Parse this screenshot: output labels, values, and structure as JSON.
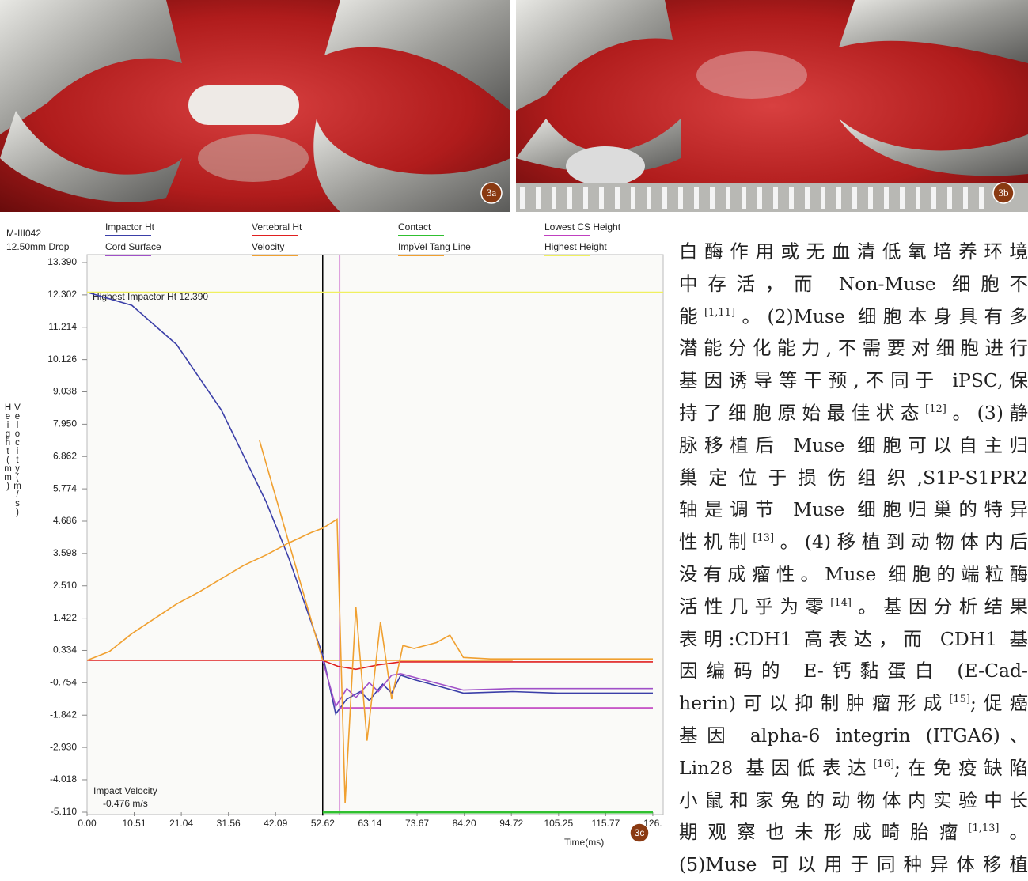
{
  "photos": [
    {
      "label": "3a"
    },
    {
      "label": "3b"
    }
  ],
  "chart_data": {
    "type": "line",
    "figure_label": "3c",
    "header": [
      "M-III042",
      "12.50mm Drop"
    ],
    "x_label": "Time(ms)",
    "y_label": [
      "Height(mm)",
      "Velocity(m/s)"
    ],
    "annotations": [
      "Highest Impactor Ht 12.390",
      "Impact Velocity",
      "-0.476 m/s"
    ],
    "xlim": [
      0,
      128.6
    ],
    "ylim": [
      -5.11,
      13.39
    ],
    "grid": false,
    "xticks": [
      {
        "value": 0,
        "label": "0.00"
      },
      {
        "value": 10.51,
        "label": "10.51"
      },
      {
        "value": 21.04,
        "label": "21.04"
      },
      {
        "value": 31.56,
        "label": "31.56"
      },
      {
        "value": 42.09,
        "label": "42.09"
      },
      {
        "value": 52.62,
        "label": "52.62"
      },
      {
        "value": 63.14,
        "label": "63.14"
      },
      {
        "value": 73.67,
        "label": "73.67"
      },
      {
        "value": 84.2,
        "label": "84.20"
      },
      {
        "value": 94.72,
        "label": "94.72"
      },
      {
        "value": 105.25,
        "label": "105.25"
      },
      {
        "value": 115.77,
        "label": "115.77"
      },
      {
        "value": 126.29,
        "label": "126."
      }
    ],
    "yticks": [
      {
        "value": 13.39,
        "label": "13.390"
      },
      {
        "value": 12.302,
        "label": "12.302"
      },
      {
        "value": 11.214,
        "label": "11.214"
      },
      {
        "value": 10.126,
        "label": "10.126"
      },
      {
        "value": 9.038,
        "label": "9.038"
      },
      {
        "value": 7.95,
        "label": "7.950"
      },
      6.862,
      5.774,
      4.686,
      3.598,
      {
        "value": 2.51,
        "label": "2.510"
      },
      1.422,
      0.334,
      -0.754,
      -1.842,
      {
        "value": -2.93,
        "label": "-2.930"
      },
      -4.018,
      {
        "value": -5.11,
        "label": "-5.110"
      }
    ],
    "markers": [
      {
        "x": 52.6,
        "color": "#000000"
      },
      {
        "x": 56.4,
        "color": "#c040c0"
      }
    ],
    "series": [
      {
        "name": "Impactor Ht",
        "color": "#3b3fa8",
        "x": [
          0,
          10,
          20,
          30,
          40,
          45,
          52.6,
          55.5,
          58,
          61,
          63,
          66,
          68,
          70,
          73,
          78,
          84,
          95,
          105,
          126.3
        ],
        "values": [
          12.39,
          11.95,
          10.63,
          8.42,
          5.33,
          3.46,
          0.18,
          -1.8,
          -1.3,
          -1.05,
          -1.35,
          -0.8,
          -1.1,
          -0.5,
          -0.65,
          -0.85,
          -1.1,
          -1.05,
          -1.1,
          -1.1
        ]
      },
      {
        "name": "Vertebral Ht",
        "color": "#e02020",
        "x": [
          0,
          52.6,
          56,
          60,
          65,
          70,
          126.3
        ],
        "values": [
          0,
          0,
          -0.2,
          -0.3,
          -0.15,
          -0.05,
          -0.05
        ]
      },
      {
        "name": "Contact",
        "color": "#30c030",
        "x": [
          52.6,
          126.3
        ],
        "values": [
          -5.11,
          -5.11
        ]
      },
      {
        "name": "Lowest CS Height",
        "color": "#c040c0",
        "x": [
          56.4,
          126.3
        ],
        "values": [
          -1.6,
          -1.6
        ]
      },
      {
        "name": "Cord Surface",
        "color": "#a050c8",
        "x": [
          52.6,
          55.5,
          58,
          60,
          63,
          65,
          68,
          70,
          75,
          84,
          95,
          126.3
        ],
        "values": [
          0,
          -1.55,
          -0.95,
          -1.25,
          -0.75,
          -1.05,
          -0.5,
          -0.45,
          -0.65,
          -1.0,
          -0.95,
          -0.95
        ]
      },
      {
        "name": "Velocity",
        "color": "#f0a030",
        "x": [
          0,
          5,
          10,
          15,
          20,
          25,
          30,
          35,
          40,
          45,
          50,
          52.6,
          55.8,
          57.6,
          60,
          62.5,
          65.5,
          68,
          70.5,
          73,
          78,
          81,
          84,
          90,
          126.3
        ],
        "values": [
          0,
          0.3,
          0.9,
          1.4,
          1.9,
          2.3,
          2.75,
          3.2,
          3.55,
          3.95,
          4.3,
          4.45,
          4.75,
          -4.8,
          1.8,
          -2.7,
          1.3,
          -1.3,
          0.5,
          0.4,
          0.6,
          0.85,
          0.1,
          0.05,
          0.05
        ]
      },
      {
        "name": "ImpVel Tang Line",
        "color": "#f0a030",
        "x": [
          38.5,
          52.6,
          95
        ],
        "values": [
          7.4,
          0,
          0
        ]
      },
      {
        "name": "Highest Height",
        "color": "#f0f060",
        "x": [
          0,
          128.6
        ],
        "values": [
          12.39,
          12.39
        ]
      }
    ]
  },
  "text": {
    "lines": [
      [
        "白酶作用或无血清低氧培养环境"
      ],
      [
        "中存活，而 Non-Muse 细胞不"
      ],
      [
        "能",
        {
          "sup": "[1,11]"
        },
        "。(2)Muse 细胞本身具有多"
      ],
      [
        "潜能分化能力,不需要对细胞进行"
      ],
      [
        "基因诱导等干预,不同于 iPSC,保"
      ],
      [
        "持了细胞原始最佳状态",
        {
          "sup": "[12]"
        },
        "。(3)静"
      ],
      [
        "脉移植后 Muse 细胞可以自主归"
      ],
      [
        "巢定位于损伤组织,S1P-S1PR2"
      ],
      [
        "轴是调节 Muse 细胞归巢的特异"
      ],
      [
        "性机制",
        {
          "sup": "[13]"
        },
        "。(4)移植到动物体内后"
      ],
      [
        "没有成瘤性。Muse 细胞的端粒酶"
      ],
      [
        "活性几乎为零",
        {
          "sup": "[14]"
        },
        "。基因分析结果"
      ],
      [
        "表明:CDH1 高表达，而 CDH1 基"
      ],
      [
        "因编码的 E-钙黏蛋白 (E-Cad-"
      ],
      [
        "herin)可以抑制肿瘤形成",
        {
          "sup": "[15]"
        },
        ";促癌"
      ],
      [
        "基因 alpha-6 integrin (ITGA6)、"
      ],
      [
        "Lin28 基因低表达",
        {
          "sup": "[16]"
        },
        ";在免疫缺陷"
      ],
      [
        "小鼠和家兔的动物体内实验中长"
      ],
      [
        "期观察也未形成畸胎瘤",
        {
          "sup": "[1,13]"
        },
        "。"
      ],
      [
        "(5)Muse 可以用于同种异体移植"
      ]
    ]
  }
}
